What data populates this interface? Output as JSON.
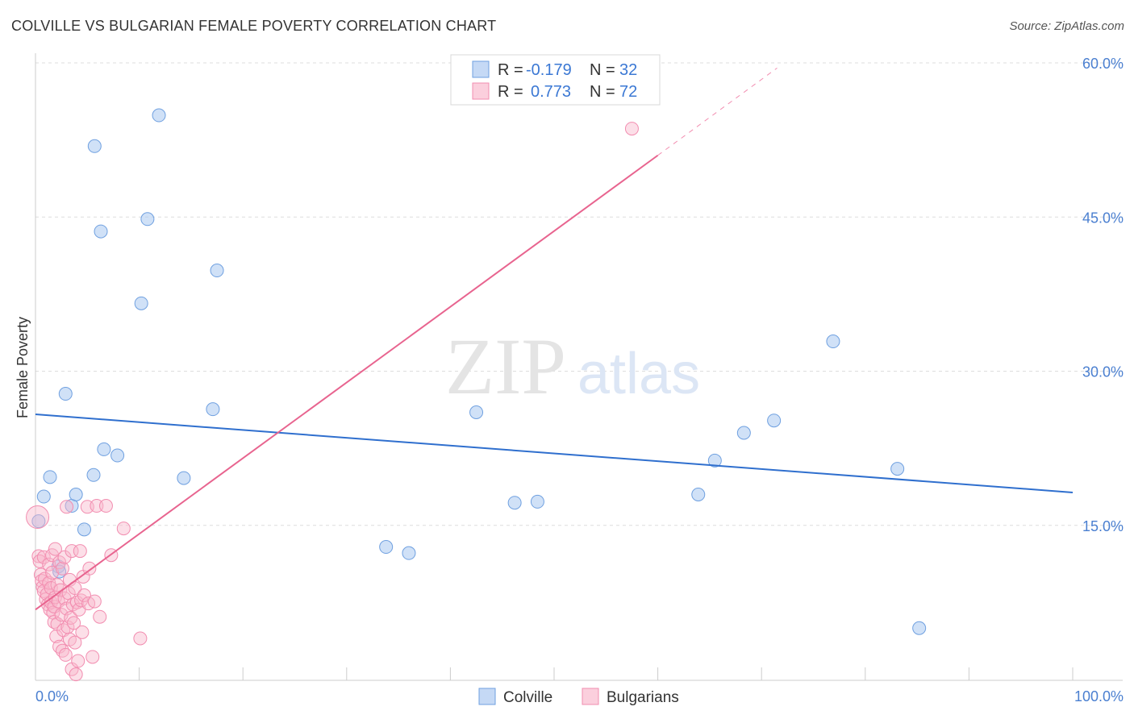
{
  "title": "COLVILLE VS BULGARIAN FEMALE POVERTY CORRELATION CHART",
  "source": "Source: ZipAtlas.com",
  "watermark": {
    "zip": "ZIP",
    "atlas": "atlas"
  },
  "legend_top": [
    {
      "r_label": "R = ",
      "r_value": "-0.179",
      "n_label": "N = ",
      "n_value": "32",
      "color": "#6fa0e0"
    },
    {
      "r_label": "R = ",
      "r_value": "0.773",
      "n_label": "N = ",
      "n_value": "72",
      "color": "#f28db0"
    }
  ],
  "legend_bottom": [
    "Colville",
    "Bulgarians"
  ],
  "chart_data": {
    "type": "scatter",
    "title": "COLVILLE VS BULGARIAN FEMALE POVERTY CORRELATION CHART",
    "xlabel": "",
    "ylabel": "Female Poverty",
    "xlim": [
      0,
      100
    ],
    "ylim": [
      0,
      60
    ],
    "x_tick_labels": [
      "0.0%",
      "100.0%"
    ],
    "y_ticks": [
      15,
      30,
      45,
      60
    ],
    "y_tick_labels": [
      "15.0%",
      "30.0%",
      "45.0%",
      "60.0%"
    ],
    "grid": "horizontal dashed",
    "legend_placement": "top-center",
    "colors": {
      "colville": "#6fa0e0",
      "colville_line": "#2f6fce",
      "bulgarians": "#f28db0",
      "bulgarians_line": "#e8648f"
    },
    "series": [
      {
        "name": "Colville",
        "r": -0.179,
        "n": 32,
        "trend": {
          "x": [
            0,
            100
          ],
          "y": [
            25.8,
            18.2
          ]
        },
        "points": [
          [
            0.3,
            15.4
          ],
          [
            0.8,
            17.8
          ],
          [
            1.4,
            19.7
          ],
          [
            2.2,
            11.0
          ],
          [
            2.3,
            10.5
          ],
          [
            2.9,
            27.8
          ],
          [
            3.5,
            16.9
          ],
          [
            3.9,
            18.0
          ],
          [
            4.7,
            14.6
          ],
          [
            5.6,
            19.9
          ],
          [
            5.7,
            51.9
          ],
          [
            6.3,
            43.6
          ],
          [
            6.6,
            22.4
          ],
          [
            7.9,
            21.8
          ],
          [
            10.2,
            36.6
          ],
          [
            10.8,
            44.8
          ],
          [
            11.9,
            54.9
          ],
          [
            14.3,
            19.6
          ],
          [
            17.1,
            26.3
          ],
          [
            17.5,
            39.8
          ],
          [
            33.8,
            12.9
          ],
          [
            36.0,
            12.3
          ],
          [
            42.5,
            26.0
          ],
          [
            46.2,
            17.2
          ],
          [
            48.4,
            17.3
          ],
          [
            63.9,
            18.0
          ],
          [
            65.5,
            21.3
          ],
          [
            68.3,
            24.0
          ],
          [
            71.2,
            25.2
          ],
          [
            76.9,
            32.9
          ],
          [
            83.1,
            20.5
          ],
          [
            85.2,
            5.0
          ]
        ]
      },
      {
        "name": "Bulgarians",
        "r": 0.773,
        "n": 72,
        "trend": {
          "x": [
            0,
            60
          ],
          "y": [
            6.8,
            51.0
          ],
          "dashed_to": {
            "x": 71.5,
            "y": 59.5
          }
        },
        "points": [
          [
            0.2,
            15.8
          ],
          [
            0.3,
            12.0
          ],
          [
            0.4,
            11.5
          ],
          [
            0.5,
            10.2
          ],
          [
            0.6,
            9.6
          ],
          [
            0.7,
            9.0
          ],
          [
            0.8,
            8.6
          ],
          [
            0.8,
            11.9
          ],
          [
            0.9,
            9.8
          ],
          [
            1.0,
            7.8
          ],
          [
            1.1,
            8.3
          ],
          [
            1.2,
            7.3
          ],
          [
            1.3,
            9.4
          ],
          [
            1.3,
            11.2
          ],
          [
            1.4,
            6.8
          ],
          [
            1.5,
            7.5
          ],
          [
            1.5,
            8.9
          ],
          [
            1.6,
            10.4
          ],
          [
            1.6,
            12.1
          ],
          [
            1.7,
            6.5
          ],
          [
            1.8,
            7.1
          ],
          [
            1.8,
            5.6
          ],
          [
            1.9,
            8.0
          ],
          [
            1.9,
            12.7
          ],
          [
            2.0,
            4.2
          ],
          [
            2.1,
            5.4
          ],
          [
            2.1,
            9.2
          ],
          [
            2.2,
            7.6
          ],
          [
            2.3,
            11.4
          ],
          [
            2.3,
            3.2
          ],
          [
            2.4,
            8.7
          ],
          [
            2.5,
            6.3
          ],
          [
            2.6,
            10.8
          ],
          [
            2.6,
            2.8
          ],
          [
            2.7,
            4.8
          ],
          [
            2.8,
            7.9
          ],
          [
            2.8,
            11.9
          ],
          [
            2.9,
            2.4
          ],
          [
            3.0,
            6.9
          ],
          [
            3.0,
            16.8
          ],
          [
            3.1,
            5.1
          ],
          [
            3.2,
            8.4
          ],
          [
            3.3,
            9.7
          ],
          [
            3.3,
            3.9
          ],
          [
            3.4,
            6.0
          ],
          [
            3.5,
            12.5
          ],
          [
            3.5,
            1.0
          ],
          [
            3.6,
            7.3
          ],
          [
            3.7,
            5.5
          ],
          [
            3.8,
            8.9
          ],
          [
            3.8,
            3.6
          ],
          [
            3.9,
            0.5
          ],
          [
            4.0,
            7.5
          ],
          [
            4.1,
            1.8
          ],
          [
            4.2,
            6.8
          ],
          [
            4.3,
            12.5
          ],
          [
            4.4,
            7.7
          ],
          [
            4.5,
            4.6
          ],
          [
            4.6,
            10.0
          ],
          [
            4.7,
            8.2
          ],
          [
            5.0,
            16.8
          ],
          [
            5.1,
            7.4
          ],
          [
            5.2,
            10.8
          ],
          [
            5.5,
            2.2
          ],
          [
            5.7,
            7.6
          ],
          [
            5.9,
            16.9
          ],
          [
            6.2,
            6.1
          ],
          [
            6.8,
            16.9
          ],
          [
            7.3,
            12.1
          ],
          [
            8.5,
            14.7
          ],
          [
            10.1,
            4.0
          ],
          [
            57.5,
            53.6
          ]
        ]
      }
    ]
  }
}
